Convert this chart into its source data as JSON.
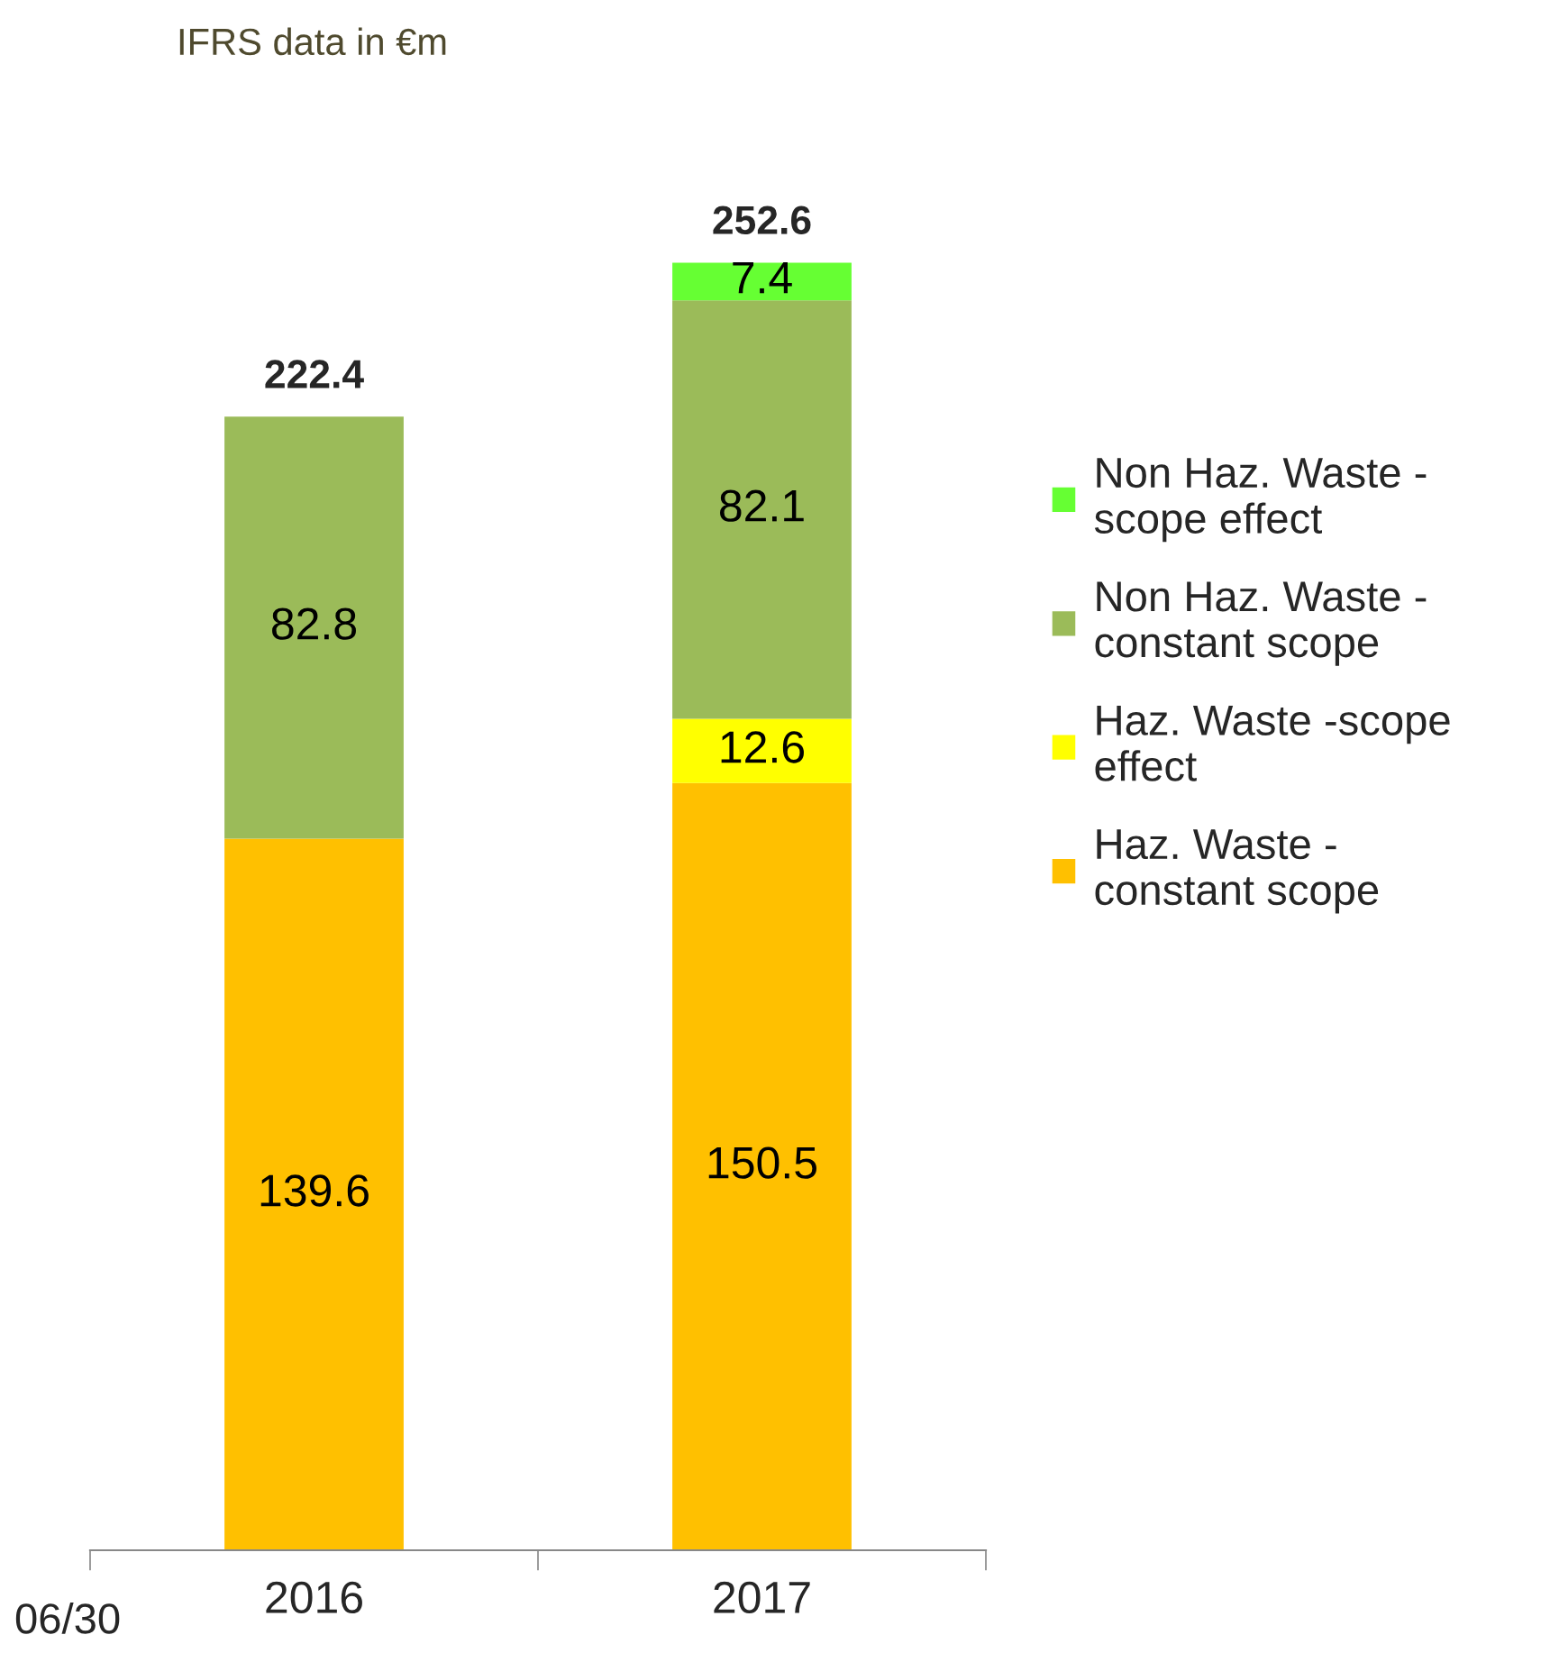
{
  "chart_data": {
    "type": "bar",
    "title": "IFRS data in €m",
    "stacked": true,
    "categories": [
      "2016",
      "2017"
    ],
    "series": [
      {
        "name": "Haz. Waste - constant scope",
        "color": "#ffc000",
        "values": [
          139.6,
          150.5
        ]
      },
      {
        "name": "Haz. Waste -scope effect",
        "color": "#ffff00",
        "values": [
          null,
          12.6
        ]
      },
      {
        "name": "Non Haz. Waste - constant scope",
        "color": "#9bbb59",
        "values": [
          82.8,
          82.1
        ]
      },
      {
        "name": "Non Haz. Waste - scope effect",
        "color": "#66ff33",
        "values": [
          null,
          7.4
        ]
      }
    ],
    "data_labels": true,
    "totals": [
      "222.4",
      "252.6"
    ],
    "legend": "right",
    "grid": false,
    "annotations": [
      "06/30"
    ]
  }
}
